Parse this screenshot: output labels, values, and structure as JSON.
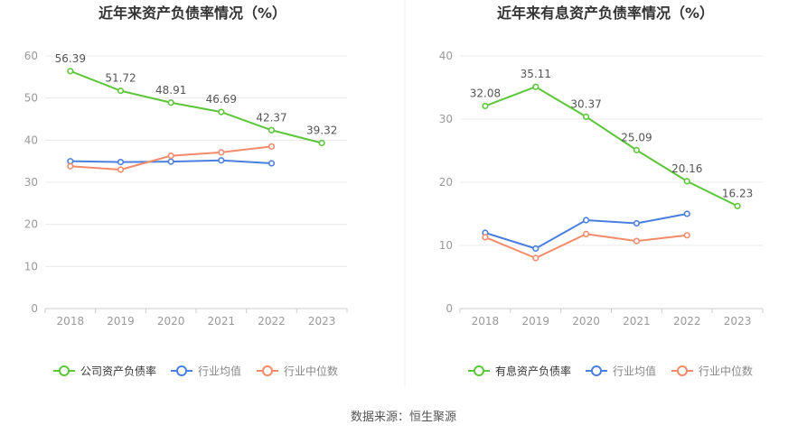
{
  "source": "数据来源：恒生聚源",
  "colors": {
    "company": "#5cc63a",
    "industry_avg": "#4a7fe0",
    "industry_median": "#f38b6b",
    "axis": "#999999",
    "grid": "#e8e8e8",
    "title": "#333333",
    "label": "#555555"
  },
  "chart_data": [
    {
      "type": "line",
      "title": "近年来资产负债率情况（%）",
      "x": [
        "2018",
        "2019",
        "2020",
        "2021",
        "2022",
        "2023"
      ],
      "ylim": [
        0,
        60
      ],
      "yticks": [
        0,
        10,
        20,
        30,
        40,
        50,
        60
      ],
      "grid": true,
      "legend": "bottom",
      "series": [
        {
          "name": "公司资产负债率",
          "color_key": "company",
          "values": [
            56.39,
            51.72,
            48.91,
            46.69,
            42.37,
            39.32
          ],
          "labels": [
            "56.39",
            "51.72",
            "48.91",
            "46.69",
            "42.37",
            "39.32"
          ]
        },
        {
          "name": "行业均值",
          "color_key": "industry_avg",
          "values": [
            35.0,
            34.8,
            34.9,
            35.2,
            34.5,
            null
          ]
        },
        {
          "name": "行业中位数",
          "color_key": "industry_median",
          "values": [
            33.8,
            33.0,
            36.3,
            37.1,
            38.5,
            null
          ]
        }
      ]
    },
    {
      "type": "line",
      "title": "近年来有息资产负债率情况（%）",
      "x": [
        "2018",
        "2019",
        "2020",
        "2021",
        "2022",
        "2023"
      ],
      "ylim": [
        0,
        40
      ],
      "yticks": [
        0,
        10,
        20,
        30,
        40
      ],
      "grid": true,
      "legend": "bottom",
      "series": [
        {
          "name": "有息资产负债率",
          "color_key": "company",
          "values": [
            32.08,
            35.11,
            30.37,
            25.09,
            20.16,
            16.23
          ],
          "labels": [
            "32.08",
            "35.11",
            "30.37",
            "25.09",
            "20.16",
            "16.23"
          ]
        },
        {
          "name": "行业均值",
          "color_key": "industry_avg",
          "values": [
            12.0,
            9.5,
            14.0,
            13.5,
            15.0,
            null
          ]
        },
        {
          "name": "行业中位数",
          "color_key": "industry_median",
          "values": [
            11.3,
            8.0,
            11.8,
            10.7,
            11.6,
            null
          ]
        }
      ]
    }
  ]
}
